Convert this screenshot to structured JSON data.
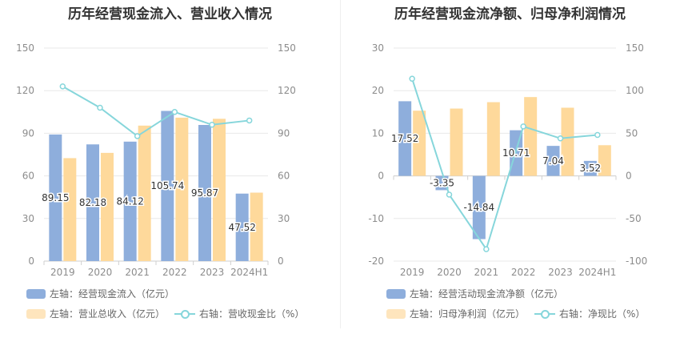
{
  "colors": {
    "bar_blue": "#8eaedc",
    "bar_orange": "#fed99b",
    "line": "#86d6db",
    "axis_text": "#8c8c8c",
    "grid": "#e8e8e8"
  },
  "left_panel": {
    "title": "历年经营现金流入、营业收入情况",
    "legend": {
      "series1": "左轴：经营现金流入（亿元）",
      "series2": "左轴：营业总收入（亿元）",
      "series3": "右轴：营收现金比（%）"
    }
  },
  "right_panel": {
    "title": "历年经营现金流净额、归母净利润情况",
    "legend": {
      "series1": "左轴：经营活动现金流净额（亿元）",
      "series2": "左轴：归母净利润（亿元）",
      "series3": "右轴：净现比（%）"
    }
  },
  "chart_data": [
    {
      "type": "bar",
      "title": "历年经营现金流入、营业收入情况",
      "categories": [
        "2019",
        "2020",
        "2021",
        "2022",
        "2023",
        "2024H1"
      ],
      "y_left": {
        "ticks": [
          "0",
          "30",
          "60",
          "90",
          "120",
          "150"
        ],
        "ylim": [
          0,
          150
        ]
      },
      "y_right": {
        "ticks": [
          "0",
          "30",
          "60",
          "90",
          "120",
          "150"
        ],
        "ylim": [
          0,
          150
        ]
      },
      "series": [
        {
          "name": "左轴：经营现金流入（亿元）",
          "axis": "left",
          "type": "bar",
          "values": [
            89.15,
            82.18,
            84.12,
            105.74,
            95.87,
            47.52
          ],
          "labels": [
            "89.15",
            "82.18",
            "84.12",
            "105.74",
            "95.87",
            "47.52"
          ]
        },
        {
          "name": "左轴：营业总收入（亿元）",
          "axis": "left",
          "type": "bar",
          "values": [
            72.5,
            76.2,
            95.4,
            101.0,
            100.2,
            48.2
          ]
        },
        {
          "name": "右轴：营收现金比（%）",
          "axis": "right",
          "type": "line",
          "values": [
            123,
            108,
            88,
            105,
            96,
            99
          ]
        }
      ],
      "grid": true,
      "legend_position": "bottom"
    },
    {
      "type": "bar",
      "title": "历年经营现金流净额、归母净利润情况",
      "categories": [
        "2019",
        "2020",
        "2021",
        "2022",
        "2023",
        "2024H1"
      ],
      "y_left": {
        "ticks": [
          "-20",
          "-10",
          "0",
          "10",
          "20",
          "30"
        ],
        "ylim": [
          -20,
          30
        ]
      },
      "y_right": {
        "ticks": [
          "-100",
          "-50",
          "0",
          "50",
          "100",
          "150"
        ],
        "ylim": [
          -100,
          150
        ]
      },
      "series": [
        {
          "name": "左轴：经营活动现金流净额（亿元）",
          "axis": "left",
          "type": "bar",
          "values": [
            17.52,
            -3.35,
            -14.84,
            10.71,
            7.04,
            3.52
          ],
          "labels": [
            "17.52",
            "-3.35",
            "-14.84",
            "10.71",
            "7.04",
            "3.52"
          ]
        },
        {
          "name": "左轴：归母净利润（亿元）",
          "axis": "left",
          "type": "bar",
          "values": [
            15.3,
            15.8,
            17.3,
            18.5,
            16.0,
            7.2
          ]
        },
        {
          "name": "右轴：净现比（%）",
          "axis": "right",
          "type": "line",
          "values": [
            114,
            -22,
            -86,
            58,
            44,
            48
          ]
        }
      ],
      "grid": true,
      "legend_position": "bottom"
    }
  ]
}
